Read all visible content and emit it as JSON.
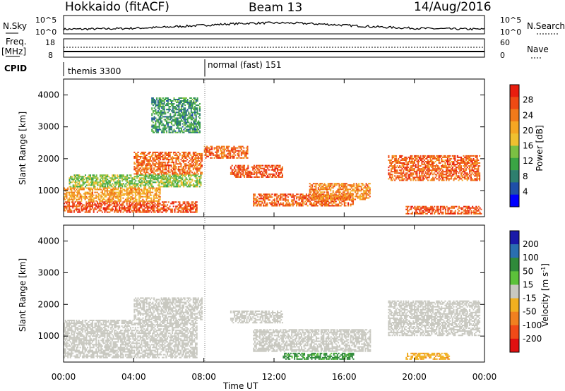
{
  "header": {
    "site": "Hokkaido (fitACF)",
    "beam": "Beam 13",
    "date": "14/Aug/2016"
  },
  "noise_panel": {
    "left_label": "N.Sky",
    "right_label": "N.Search",
    "left_ticks": [
      "10^5",
      "10^0"
    ],
    "right_ticks": [
      "10^5",
      "10^0"
    ]
  },
  "freq_panel": {
    "left_label_1": "Freq.",
    "left_label_2": "[MHz]",
    "right_label": "Nave",
    "left_ticks": [
      "18",
      "8"
    ],
    "right_ticks": [
      "60",
      "0"
    ]
  },
  "cpid": {
    "label": "CPID",
    "segments": [
      {
        "start_hour": 0,
        "text": "themis 3300"
      },
      {
        "start_hour": 8,
        "text": "normal (fast) 151"
      }
    ]
  },
  "chart_data": [
    {
      "type": "heatmap",
      "name": "power",
      "ylabel": "Slant Range [km]",
      "yticks": [
        1000,
        2000,
        3000,
        4000
      ],
      "ylim": [
        180,
        4500
      ],
      "xlim": [
        "00:00",
        "24:00"
      ],
      "colorbar": {
        "label": "Power [dB]",
        "ticks": [
          4,
          8,
          12,
          16,
          20,
          24,
          28
        ],
        "colors": [
          "#0000ff",
          "#1f4fa8",
          "#2e7f6e",
          "#3aa544",
          "#7bc043",
          "#f0c030",
          "#f5a623",
          "#f07a1a",
          "#ee4a14",
          "#e81d0e"
        ]
      },
      "echo_regions": [
        {
          "t0": 0.0,
          "t1": 7.6,
          "r0": 300,
          "r1": 650,
          "value": 28
        },
        {
          "t0": 0.0,
          "t1": 5.5,
          "r0": 650,
          "r1": 1100,
          "value": 22
        },
        {
          "t0": 0.3,
          "t1": 7.8,
          "r0": 1100,
          "r1": 1500,
          "value": 14
        },
        {
          "t0": 4.0,
          "t1": 7.9,
          "r0": 1500,
          "r1": 2200,
          "value": 26
        },
        {
          "t0": 5.0,
          "t1": 7.8,
          "r0": 2800,
          "r1": 3900,
          "value": 9
        },
        {
          "t0": 8.0,
          "t1": 10.5,
          "r0": 2000,
          "r1": 2400,
          "value": 27
        },
        {
          "t0": 9.5,
          "t1": 12.5,
          "r0": 1400,
          "r1": 1800,
          "value": 28
        },
        {
          "t0": 10.8,
          "t1": 16.5,
          "r0": 500,
          "r1": 900,
          "value": 27
        },
        {
          "t0": 14.0,
          "t1": 17.5,
          "r0": 700,
          "r1": 1200,
          "value": 24
        },
        {
          "t0": 18.5,
          "t1": 23.7,
          "r0": 1300,
          "r1": 2100,
          "value": 27
        },
        {
          "t0": 19.5,
          "t1": 23.8,
          "r0": 250,
          "r1": 500,
          "value": 28
        }
      ]
    },
    {
      "type": "heatmap",
      "name": "velocity",
      "ylabel": "Slant Range [km]",
      "yticks": [
        1000,
        2000,
        3000,
        4000
      ],
      "ylim": [
        180,
        4500
      ],
      "xlim": [
        "00:00",
        "24:00"
      ],
      "xlabel": "Time UT",
      "xticks": [
        "00:00",
        "04:00",
        "08:00",
        "12:00",
        "16:00",
        "20:00",
        "00:00"
      ],
      "colorbar": {
        "label": "Velocity [m s^-1]",
        "ticks": [
          200,
          100,
          50,
          15,
          -15,
          -50,
          -100,
          -200
        ],
        "colors": [
          "#1a1aa8",
          "#2a6fb0",
          "#2f8a3a",
          "#5cc13a",
          "#c8c8c0",
          "#f0b020",
          "#f08020",
          "#f04a18",
          "#e01010"
        ]
      },
      "echo_regions": [
        {
          "t0": 0.0,
          "t1": 7.6,
          "r0": 300,
          "r1": 1500,
          "value": 0
        },
        {
          "t0": 4.0,
          "t1": 7.9,
          "r0": 1500,
          "r1": 2200,
          "value": 0
        },
        {
          "t0": 9.5,
          "t1": 12.5,
          "r0": 1400,
          "r1": 1800,
          "value": 0
        },
        {
          "t0": 10.8,
          "t1": 17.5,
          "r0": 500,
          "r1": 1200,
          "value": 0
        },
        {
          "t0": 18.5,
          "t1": 23.7,
          "r0": 1000,
          "r1": 2100,
          "value": 0
        },
        {
          "t0": 12.5,
          "t1": 16.5,
          "r0": 250,
          "r1": 450,
          "value": 60
        },
        {
          "t0": 19.5,
          "t1": 22.0,
          "r0": 250,
          "r1": 450,
          "value": -40
        }
      ]
    }
  ]
}
